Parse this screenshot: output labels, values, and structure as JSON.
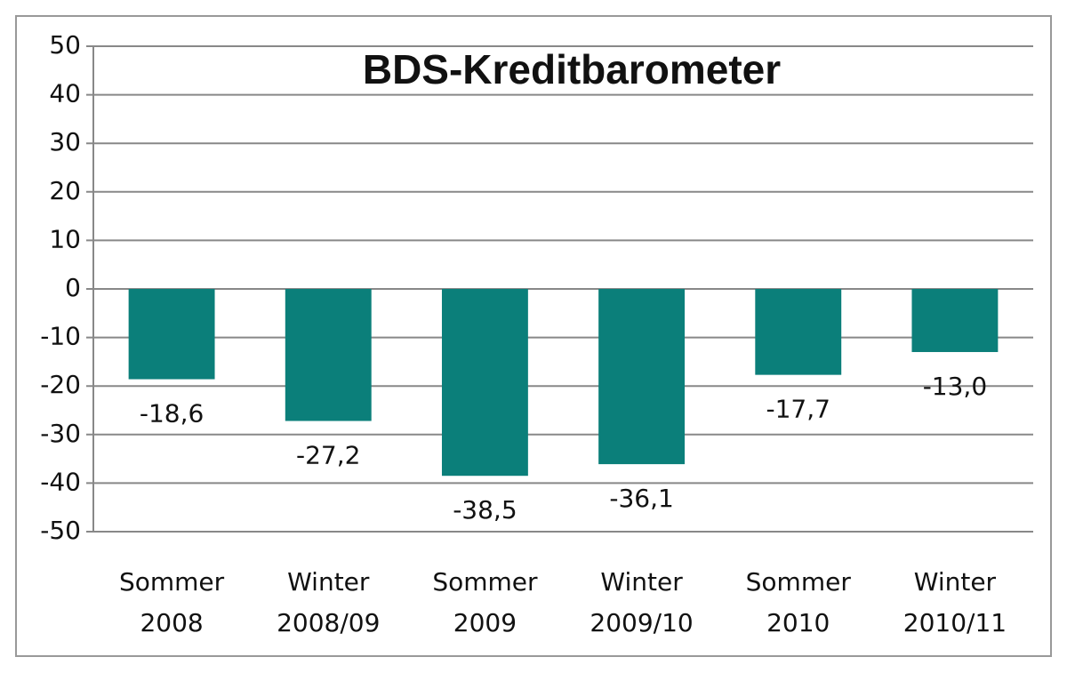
{
  "chart_data": {
    "type": "bar",
    "title": "BDS-Kreditbarometer",
    "categories": [
      "Sommer 2008",
      "Winter 2008/09",
      "Sommer 2009",
      "Winter 2009/10",
      "Sommer 2010",
      "Winter 2010/11"
    ],
    "values": [
      -18.6,
      -27.2,
      -38.5,
      -36.1,
      -17.7,
      -13.0
    ],
    "value_labels": [
      "-18,6",
      "-27,2",
      "-38,5",
      "-36,1",
      "-17,7",
      "-13,0"
    ],
    "color": "#0b7f7a",
    "ylim": [
      -50,
      50
    ],
    "yticks": [
      -50,
      -40,
      -30,
      -20,
      -10,
      0,
      10,
      20,
      30,
      40,
      50
    ],
    "grid": true
  }
}
